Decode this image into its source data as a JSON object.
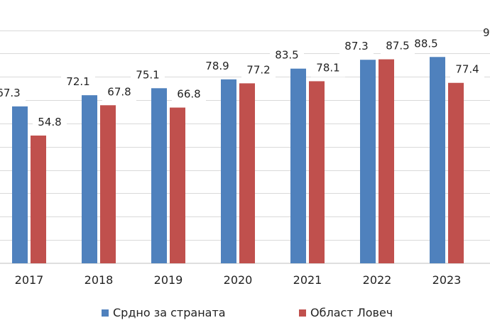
{
  "chart_data": {
    "type": "bar",
    "categories": [
      "2017",
      "2018",
      "2019",
      "2020",
      "2021",
      "2022",
      "2023"
    ],
    "series": [
      {
        "name": "Срдно за страната",
        "color": "#4f81bd",
        "values": [
          67.3,
          72.1,
          75.1,
          78.9,
          83.5,
          87.3,
          88.5
        ]
      },
      {
        "name": "Област Ловеч",
        "color": "#c0504d",
        "values": [
          54.8,
          67.8,
          66.8,
          77.2,
          78.1,
          87.5,
          77.4
        ]
      }
    ],
    "edge_label": "9",
    "ylim": [
      0,
      100
    ],
    "grid": true
  }
}
